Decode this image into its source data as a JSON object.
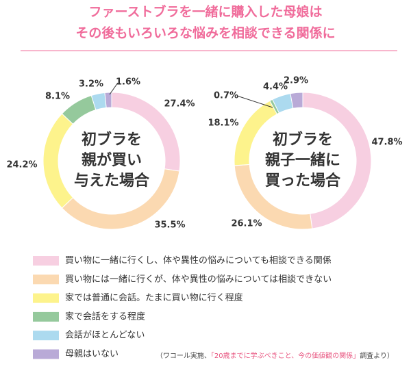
{
  "chart_data": {
    "type": "donut",
    "title": [
      "ファーストブラを一緒に購入した母娘は",
      "その後もいろいろな悩みを相談できる関係に"
    ],
    "categories": [
      "買い物に一緒に行くし、体や異性の悩みについても相談できる関係",
      "買い物には一緒に行くが、体や異性の悩みについては相談できない",
      "家では普通に会話。たまに買い物に行く程度",
      "家で会話をする程度",
      "会話がほとんどない",
      "母親はいない"
    ],
    "colors": [
      "#f7cfe1",
      "#fbd9b1",
      "#fdf38c",
      "#95c99c",
      "#acdaef",
      "#b9aad7"
    ],
    "charts": [
      {
        "center_label": [
          "初ブラを",
          "親が買い",
          "与えた場合"
        ],
        "values": [
          27.4,
          35.5,
          24.2,
          8.1,
          3.2,
          1.6
        ],
        "value_labels": [
          "27.4%",
          "35.5%",
          "24.2%",
          "8.1%",
          "3.2%",
          "1.6%"
        ]
      },
      {
        "center_label": [
          "初ブラを",
          "親子一緒に",
          "買った場合"
        ],
        "values": [
          47.8,
          26.1,
          18.1,
          0.7,
          4.4,
          2.9
        ],
        "value_labels": [
          "47.8%",
          "26.1%",
          "18.1%",
          "0.7%",
          "4.4%",
          "2.9%"
        ]
      }
    ],
    "source": [
      "（ワコール実施、",
      "「20歳までに学ぶべきこと、今の価値観の関係」",
      "調査より）"
    ]
  }
}
